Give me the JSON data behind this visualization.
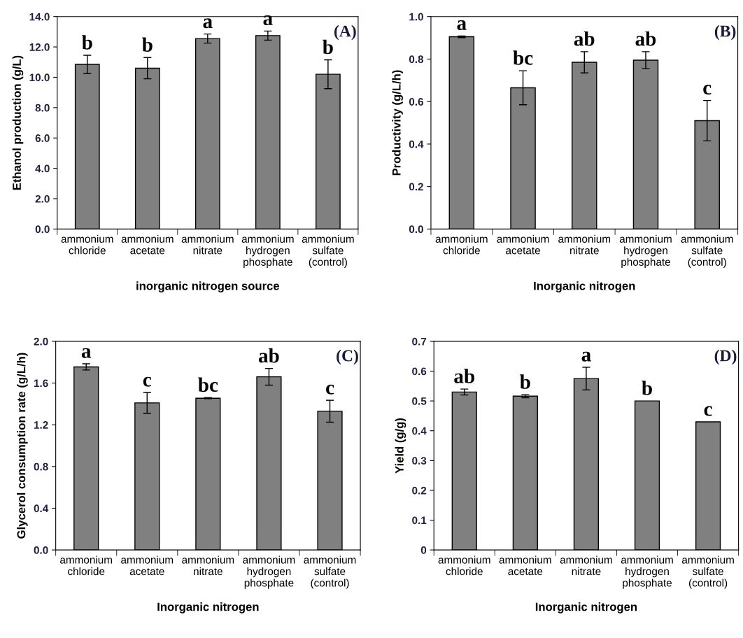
{
  "chart_data": [
    {
      "type": "bar",
      "xlabel": "inorganic nitrogen source",
      "ylabel": "Ethanol production (g/L)",
      "color": "#808080",
      "categories": [
        "ammonium\nchloride",
        "ammonium\nacetate",
        "ammonium\nnitrate",
        "ammonium\nhydrogen\nphosphate",
        "ammonium\nsulfate\n(control)"
      ],
      "values": [
        10.85,
        10.6,
        12.55,
        12.75,
        10.2
      ],
      "errors": [
        0.6,
        0.7,
        0.3,
        0.3,
        0.95
      ],
      "ylim": [
        0,
        14
      ],
      "yticks": [
        {
          "value": 0,
          "label": "0.0"
        },
        {
          "value": 2,
          "label": "2.0"
        },
        {
          "value": 4,
          "label": "4.0"
        },
        {
          "value": 6,
          "label": "6.0"
        },
        {
          "value": 8,
          "label": "8.0"
        },
        {
          "value": 10,
          "label": "10.0"
        },
        {
          "value": 12,
          "label": "12.0"
        },
        {
          "value": 14,
          "label": "14.0"
        }
      ],
      "annotations": [
        "(A)",
        {
          "text": "b",
          "x": "ammonium\nchloride",
          "y": 10.85
        },
        {
          "text": "b",
          "x": "ammonium\nacetate",
          "y": 10.6
        },
        {
          "text": "a",
          "x": "ammonium\nnitrate",
          "y": 12.55
        },
        {
          "text": "a",
          "x": "ammonium\nhydrogen\nphosphate",
          "y": 12.75
        },
        {
          "text": "b",
          "x": "ammonium\nsulfate\n(control)",
          "y": 10.2
        }
      ]
    },
    {
      "type": "bar",
      "xlabel": "Inorganic nitrogen",
      "ylabel": "Productivity (g/L/h)",
      "color": "#808080",
      "categories": [
        "ammonium\nchloride",
        "ammonium\nacetate",
        "ammonium\nnitrate",
        "ammonium\nhydrogen\nphosphate",
        "ammonium\nsulfate\n(control)"
      ],
      "values": [
        0.905,
        0.665,
        0.785,
        0.795,
        0.51
      ],
      "errors": [
        0.004,
        0.08,
        0.05,
        0.04,
        0.095
      ],
      "ylim": [
        0,
        1.0
      ],
      "yticks": [
        {
          "value": 0,
          "label": "0.0"
        },
        0.2,
        0.4,
        0.6,
        0.8,
        {
          "value": 1,
          "label": "1.0"
        }
      ],
      "annotations": [
        "(B)",
        {
          "text": "a",
          "x": "ammonium\nchloride",
          "y": 0.905
        },
        {
          "text": "bc",
          "x": "ammonium\nacetate",
          "y": 0.665
        },
        {
          "text": "ab",
          "x": "ammonium\nnitrate",
          "y": 0.785
        },
        {
          "text": "ab",
          "x": "ammonium\nhydrogen\nphosphate",
          "y": 0.795
        },
        {
          "text": "c",
          "x": "ammonium\nsulfate\n(control)",
          "y": 0.51
        }
      ]
    },
    {
      "type": "bar",
      "xlabel": "Inorganic nitrogen",
      "ylabel": "Glycerol consumption rate (g/L/h)",
      "color": "#808080",
      "categories": [
        "ammonium\nchloride",
        "ammonium\nacetate",
        "ammonium\nnitrate",
        "ammonium\nhydrogen\nphosphate",
        "ammonium\nsulfate\n(control)"
      ],
      "values": [
        1.755,
        1.41,
        1.455,
        1.66,
        1.33
      ],
      "errors": [
        0.03,
        0.1,
        0.005,
        0.08,
        0.105
      ],
      "ylim": [
        0,
        2.0
      ],
      "yticks": [
        {
          "value": 0,
          "label": "0.0"
        },
        0.4,
        0.8,
        1.2,
        1.6,
        {
          "value": 2,
          "label": "2.0"
        }
      ],
      "annotations": [
        "(C)",
        {
          "text": "a",
          "x": "ammonium\nchloride",
          "y": 1.755
        },
        {
          "text": "c",
          "x": "ammonium\nacetate",
          "y": 1.41
        },
        {
          "text": "bc",
          "x": "ammonium\nnitrate",
          "y": 1.455
        },
        {
          "text": "ab",
          "x": "ammonium\nhydrogen\nphosphate",
          "y": 1.66
        },
        {
          "text": "c",
          "x": "ammonium\nsulfate\n(control)",
          "y": 1.33
        }
      ]
    },
    {
      "type": "bar",
      "xlabel": "Inorganic nitrogen",
      "ylabel": "Yield (g/g)",
      "color": "#808080",
      "categories": [
        "ammonium\nchloride",
        "ammonium\nacetate",
        "ammonium\nnitrate",
        "ammonium\nhydrogen\nphosphate",
        "ammonium\nsulfate\n(control)"
      ],
      "values": [
        0.53,
        0.516,
        0.575,
        0.5,
        0.43
      ],
      "errors": [
        0.01,
        0.005,
        0.038,
        null,
        null
      ],
      "ylim": [
        0,
        0.7
      ],
      "yticks": [
        0,
        0.1,
        0.2,
        0.3,
        0.4,
        0.5,
        0.6,
        0.7
      ],
      "annotations": [
        "(D)",
        {
          "text": "ab",
          "x": "ammonium\nchloride",
          "y": 0.53
        },
        {
          "text": "b",
          "x": "ammonium\nacetate",
          "y": 0.516
        },
        {
          "text": "a",
          "x": "ammonium\nnitrate",
          "y": 0.575
        },
        {
          "text": "b",
          "x": "ammonium\nhydrogen\nphosphate",
          "y": 0.5
        },
        {
          "text": "c",
          "x": "ammonium\nsulfate\n(control)",
          "y": 0.43
        }
      ]
    }
  ]
}
